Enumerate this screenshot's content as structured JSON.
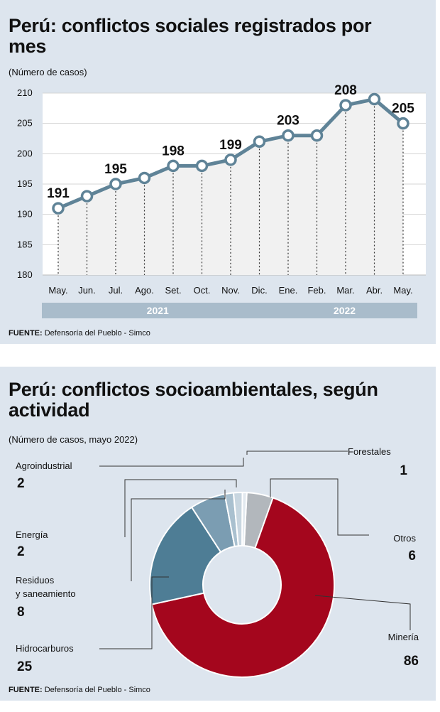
{
  "chart1": {
    "title": "Perú: conflictos sociales registrados por mes",
    "subtitle": "(Número de casos)",
    "source_label": "FUENTE:",
    "source_text": "Defensoría del Pueblo - Simco",
    "year_groups": [
      {
        "label": "2021",
        "from": 0,
        "to": 7
      },
      {
        "label": "2022",
        "from": 8,
        "to": 12
      }
    ]
  },
  "chart2": {
    "title": "Perú: conflictos socioambientales, según actividad",
    "subtitle": "(Número de casos, mayo 2022)",
    "source_label": "FUENTE:",
    "source_text": "Defensoría del Pueblo - Simco"
  },
  "chart_data": [
    {
      "type": "line",
      "title": "Perú: conflictos sociales registrados por mes",
      "subtitle": "(Número de casos)",
      "x": [
        "May.",
        "Jun.",
        "Jul.",
        "Ago.",
        "Set.",
        "Oct.",
        "Nov.",
        "Dic.",
        "Ene.",
        "Feb.",
        "Mar.",
        "Abr.",
        "May."
      ],
      "values": [
        191,
        193,
        195,
        196,
        198,
        198,
        199,
        202,
        203,
        203,
        208,
        209,
        205
      ],
      "labeled_points": [
        {
          "index": 0,
          "label": "191"
        },
        {
          "index": 2,
          "label": "195"
        },
        {
          "index": 4,
          "label": "198"
        },
        {
          "index": 6,
          "label": "199"
        },
        {
          "index": 8,
          "label": "203"
        },
        {
          "index": 10,
          "label": "208"
        },
        {
          "index": 12,
          "label": "205"
        }
      ],
      "yticks": [
        "180",
        "185",
        "190",
        "195",
        "200",
        "205",
        "210"
      ],
      "ylim": [
        180,
        210
      ],
      "grid": true,
      "colors": {
        "line": "#5f8397",
        "area": "#f1f1f1",
        "drop": "#333333",
        "year_band": "#a9bccb"
      }
    },
    {
      "type": "pie",
      "donut": true,
      "title": "Perú: conflictos socioambientales, según actividad",
      "subtitle": "(Número de casos, mayo 2022)",
      "slices": [
        {
          "name": "Minería",
          "value": 86,
          "value_label": "86",
          "color": "#a4061d"
        },
        {
          "name": "Hidrocarburos",
          "value": 25,
          "value_label": "25",
          "color": "#4e7d95"
        },
        {
          "name": "Residuos y saneamiento",
          "name_lines": [
            "Residuos",
            "y saneamiento"
          ],
          "value": 8,
          "value_label": "8",
          "color": "#7b9db2"
        },
        {
          "name": "Energía",
          "value": 2,
          "value_label": "2",
          "color": "#a9c0cf"
        },
        {
          "name": "Agroindustrial",
          "value": 2,
          "value_label": "2",
          "color": "#c8d6e0"
        },
        {
          "name": "Forestales",
          "value": 1,
          "value_label": "1",
          "color": "#e2e9ef"
        },
        {
          "name": "Otros",
          "value": 6,
          "value_label": "6",
          "color": "#b2b7bc"
        }
      ]
    }
  ]
}
